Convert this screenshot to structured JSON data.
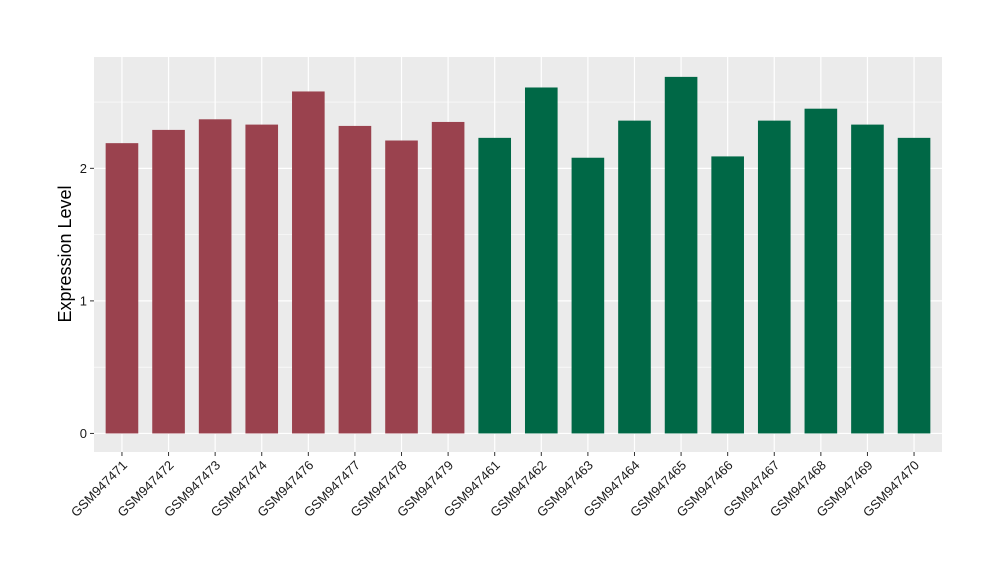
{
  "chart_data": {
    "type": "bar",
    "categories": [
      "GSM947471",
      "GSM947472",
      "GSM947473",
      "GSM947474",
      "GSM947476",
      "GSM947477",
      "GSM947478",
      "GSM947479",
      "GSM947461",
      "GSM947462",
      "GSM947463",
      "GSM947464",
      "GSM947465",
      "GSM947466",
      "GSM947467",
      "GSM947468",
      "GSM947469",
      "GSM947470"
    ],
    "values": [
      2.19,
      2.29,
      2.37,
      2.33,
      2.58,
      2.32,
      2.21,
      2.35,
      2.23,
      2.61,
      2.08,
      2.36,
      2.69,
      2.09,
      2.36,
      2.45,
      2.33,
      2.23
    ],
    "groups": [
      "g1",
      "g1",
      "g1",
      "g1",
      "g1",
      "g1",
      "g1",
      "g1",
      "g2",
      "g2",
      "g2",
      "g2",
      "g2",
      "g2",
      "g2",
      "g2",
      "g2",
      "g2"
    ],
    "group_colors": {
      "g1": "#9a424e",
      "g2": "#006846"
    },
    "title": "",
    "xlabel": "",
    "ylabel": "Expression Level",
    "ylim": [
      -0.14,
      2.84
    ],
    "yticks": [
      0,
      1,
      2
    ],
    "grid": true,
    "panel_color": "#ebebeb",
    "grid_color": "#ffffff"
  }
}
